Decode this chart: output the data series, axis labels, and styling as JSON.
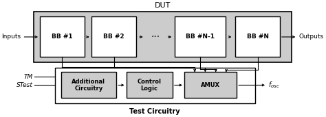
{
  "title": "DUT",
  "subtitle": "Test Circuitry",
  "dut_bg": "#cccccc",
  "box_bg": "#ffffff",
  "tc_bg": "#cccccc",
  "box_edge": "#000000",
  "input_label": "Inputs",
  "output_label": "Outputs",
  "tm_label": "TM",
  "stest_label": "STest",
  "fosc_label": "$f_{osc}$",
  "figsize": [
    4.74,
    1.71
  ],
  "dpi": 100
}
